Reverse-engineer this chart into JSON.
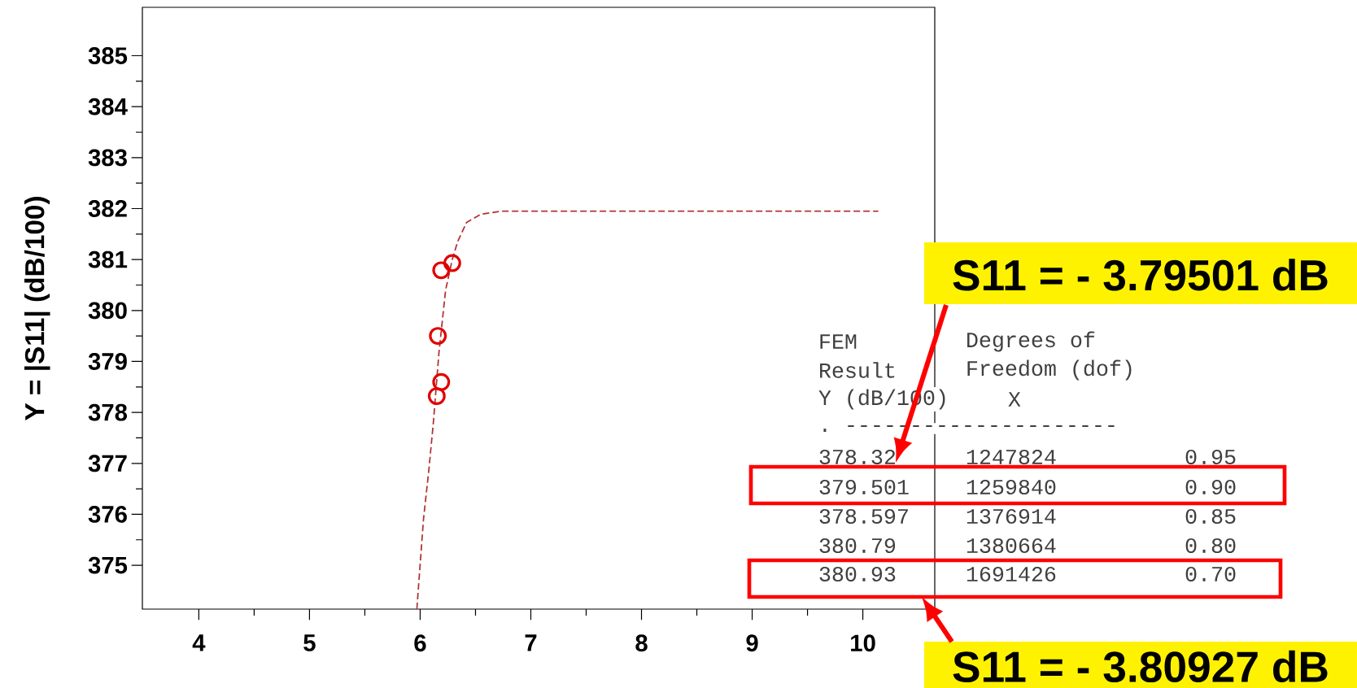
{
  "chart_data": {
    "type": "scatter",
    "ylabel": "Y  =  |S11|  (dB/100)",
    "xlim": [
      3.49,
      10.65
    ],
    "ylim": [
      374.14,
      385.95
    ],
    "xticks": [
      4,
      5,
      6,
      7,
      8,
      9,
      10
    ],
    "yticks": [
      375,
      376,
      377,
      378,
      379,
      380,
      381,
      382,
      383,
      384,
      385
    ],
    "series": [
      {
        "type": "scatter",
        "color": "#e00000",
        "marker": "circle",
        "x": [
          6.15,
          6.16,
          6.19,
          6.19,
          6.29
        ],
        "values": [
          378.32,
          379.501,
          378.597,
          380.79,
          380.93
        ]
      },
      {
        "type": "line",
        "color": "#b03030",
        "line_style": "dashed",
        "marker": "none",
        "x": [
          5.97,
          6.03,
          6.08,
          6.12,
          6.17,
          6.23,
          6.29,
          6.34,
          6.42,
          6.55,
          6.74,
          10.14
        ],
        "values": [
          374.14,
          375.9,
          376.9,
          377.82,
          379.18,
          380.4,
          381.0,
          381.36,
          381.73,
          381.89,
          381.95,
          381.95
        ]
      }
    ],
    "annotations": [
      "FEM",
      "Result",
      "Y (dB/100)",
      ". ---------------------",
      "Degrees of",
      "Freedom (dof)",
      "X",
      "378.32",
      "1247824",
      "0.95",
      "379.501",
      "1259840",
      "0.90",
      "378.597",
      "1376914",
      "0.85",
      "380.79",
      "1380664",
      "0.80",
      "380.93",
      "1691426",
      "0.70",
      "S11 = - 3.79501 dB",
      "S11 = - 3.80927 dB"
    ]
  }
}
